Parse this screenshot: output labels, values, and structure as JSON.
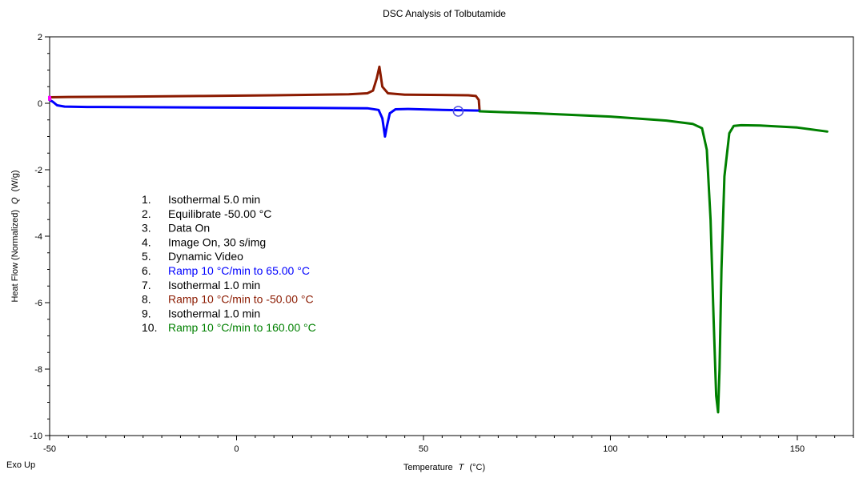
{
  "chart_data": {
    "type": "line",
    "title": "DSC Analysis of Tolbutamide",
    "xlabel": "Temperature",
    "xlabel_symbol": "T",
    "xlabel_unit": "(°C)",
    "ylabel": "Heat Flow (Normalized)",
    "ylabel_symbol": "Q",
    "ylabel_unit": "(W/g)",
    "corner_note": "Exo Up",
    "xlim": [
      -50,
      165
    ],
    "ylim": [
      -10,
      2
    ],
    "xticks": [
      -50,
      0,
      50,
      100,
      150
    ],
    "yticks": [
      2,
      0,
      -2,
      -4,
      -6,
      -8,
      -10
    ],
    "grid": false,
    "legend_placement": "center-left",
    "legend": [
      {
        "num": "1.",
        "text": "Isothermal 5.0 min",
        "color": "#000000"
      },
      {
        "num": "2.",
        "text": "Equilibrate -50.00 °C",
        "color": "#000000"
      },
      {
        "num": "3.",
        "text": "Data On",
        "color": "#000000"
      },
      {
        "num": "4.",
        "text": "Image On, 30 s/img",
        "color": "#000000"
      },
      {
        "num": "5.",
        "text": "Dynamic Video",
        "color": "#000000"
      },
      {
        "num": "6.",
        "text": "Ramp 10 °C/min to 65.00 °C",
        "color": "#0000ff"
      },
      {
        "num": "7.",
        "text": "Isothermal 1.0 min",
        "color": "#000000"
      },
      {
        "num": "8.",
        "text": "Ramp 10 °C/min to -50.00 °C",
        "color": "#8b1a00"
      },
      {
        "num": "9.",
        "text": "Isothermal 1.0 min",
        "color": "#000000"
      },
      {
        "num": "10.",
        "text": "Ramp 10 °C/min to 160.00 °C",
        "color": "#008000"
      }
    ],
    "series": [
      {
        "color": "#8b1a00",
        "x": [
          -50,
          -45,
          -30,
          -10,
          10,
          30,
          35,
          36.5,
          37.5,
          38.2,
          39,
          40.5,
          45,
          55,
          62,
          64,
          64.8,
          65
        ],
        "y": [
          0.18,
          0.19,
          0.2,
          0.22,
          0.24,
          0.27,
          0.3,
          0.38,
          0.75,
          1.1,
          0.5,
          0.3,
          0.26,
          0.25,
          0.24,
          0.22,
          0.1,
          -0.2
        ]
      },
      {
        "color": "#0000ff",
        "x": [
          -50,
          -49.2,
          -48,
          -46,
          -40,
          -20,
          0,
          20,
          35,
          38,
          39,
          39.7,
          40.2,
          41,
          42.5,
          46,
          55,
          65
        ],
        "y": [
          0.1,
          0.05,
          -0.06,
          -0.1,
          -0.11,
          -0.12,
          -0.13,
          -0.14,
          -0.15,
          -0.2,
          -0.45,
          -1.0,
          -0.7,
          -0.3,
          -0.18,
          -0.17,
          -0.2,
          -0.22
        ]
      },
      {
        "color": "#008000",
        "x": [
          65,
          80,
          100,
          115,
          122,
          124.5,
          125.8,
          126.8,
          127.6,
          128.3,
          128.8,
          129.2,
          129.7,
          130.5,
          131.8,
          133,
          135,
          140,
          150,
          158
        ],
        "y": [
          -0.24,
          -0.3,
          -0.4,
          -0.52,
          -0.62,
          -0.75,
          -1.4,
          -3.5,
          -6.5,
          -8.8,
          -9.3,
          -8.0,
          -5.0,
          -2.2,
          -0.9,
          -0.68,
          -0.66,
          -0.67,
          -0.73,
          -0.85
        ]
      }
    ],
    "markers": [
      {
        "shape": "open-circle",
        "x": 59.3,
        "y": -0.24,
        "color": "#5050e0"
      },
      {
        "shape": "square",
        "x": -50,
        "y": 0.15,
        "color": "#ff00ff"
      }
    ]
  }
}
